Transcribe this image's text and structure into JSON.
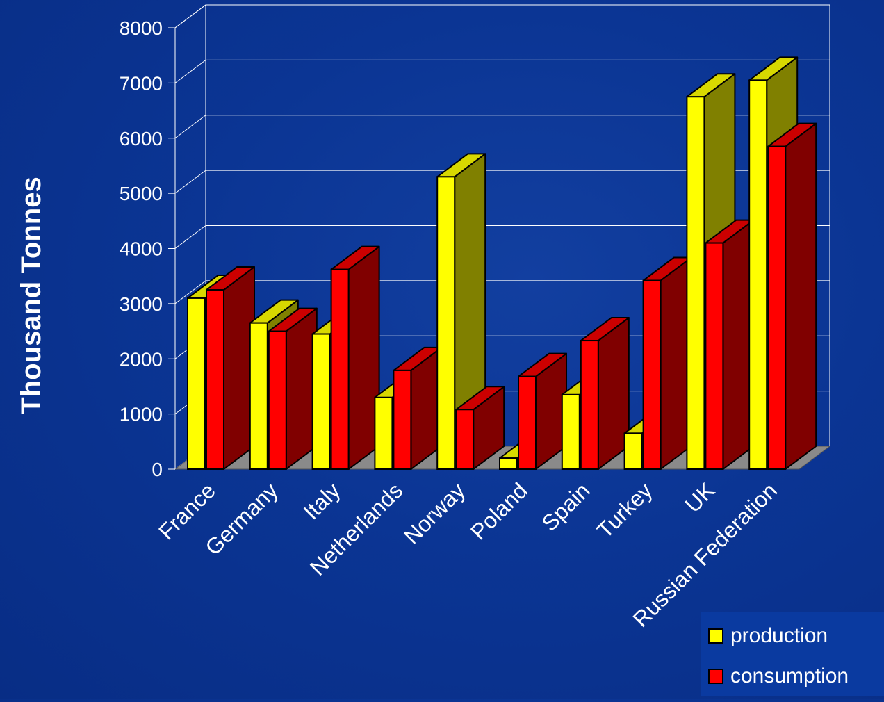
{
  "chart_data": {
    "type": "bar",
    "variant": "3d-clustered",
    "title": "",
    "xlabel": "",
    "ylabel": "Thousand Tonnes",
    "ylim": [
      0,
      8000
    ],
    "yticks": [
      "0",
      "1000",
      "2000",
      "3000",
      "4000",
      "5000",
      "6000",
      "7000",
      "8000"
    ],
    "grid": true,
    "legend_position": "bottom-right",
    "categories": [
      "France",
      "Germany",
      "Italy",
      "Netherlands",
      "Norway",
      "Poland",
      "Spain",
      "Turkey",
      "UK",
      "Russian Federation"
    ],
    "series": [
      {
        "name": "production",
        "color": "#ffff00",
        "values": [
          3100,
          2650,
          2450,
          1300,
          5300,
          200,
          1350,
          650,
          6750,
          7050
        ]
      },
      {
        "name": "consumption",
        "color": "#ff0000",
        "values": [
          3250,
          2500,
          3620,
          1790,
          1080,
          1680,
          2330,
          3420,
          4100,
          5850
        ]
      }
    ]
  }
}
